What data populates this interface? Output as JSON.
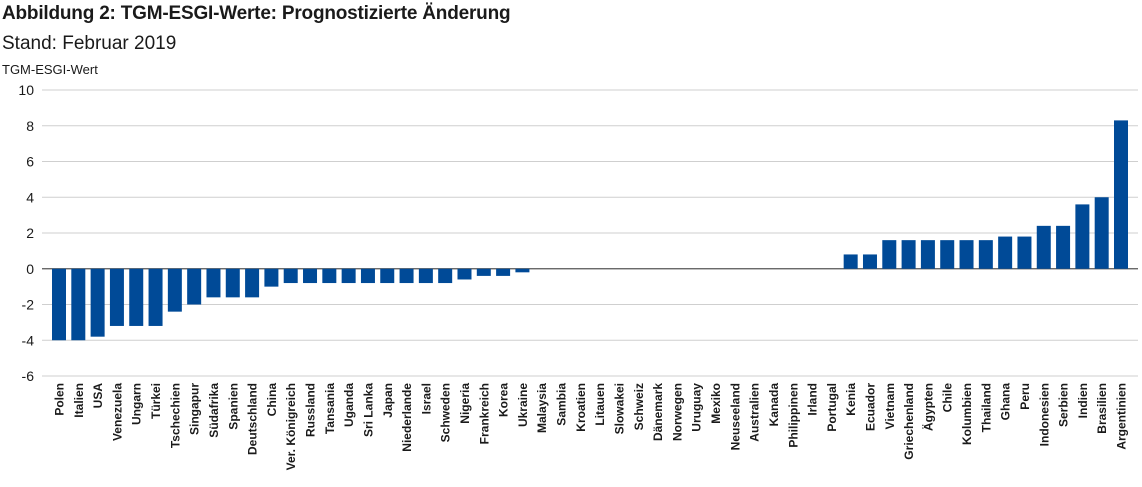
{
  "header": {
    "title": "Abbildung 2: TGM-ESGI-Werte: Prognostizierte Änderung",
    "subtitle": "Stand: Februar 2019"
  },
  "chart_data": {
    "type": "bar",
    "title": "Abbildung 2: TGM-ESGI-Werte: Prognostizierte Änderung",
    "subtitle": "Stand: Februar 2019",
    "xlabel": "",
    "ylabel": "TGM-ESGI-Wert",
    "ylim": [
      -6,
      10
    ],
    "yticks": [
      10,
      8,
      6,
      4,
      2,
      0,
      -2,
      -4,
      -6
    ],
    "grid": true,
    "bar_color": "#004a97",
    "categories": [
      "Polen",
      "Italien",
      "USA",
      "Venezuela",
      "Ungarn",
      "Türkei",
      "Tschechien",
      "Singapur",
      "Südafrika",
      "Spanien",
      "Deutschland",
      "China",
      "Ver. Königreich",
      "Russland",
      "Tansania",
      "Uganda",
      "Sri Lanka",
      "Japan",
      "Niederlande",
      "Israel",
      "Schweden",
      "Nigeria",
      "Frankreich",
      "Korea",
      "Ukraine",
      "Malaysia",
      "Sambia",
      "Kroatien",
      "Litauen",
      "Slowakei",
      "Schweiz",
      "Dänemark",
      "Norwegen",
      "Uruguay",
      "Mexiko",
      "Neuseeland",
      "Australien",
      "Kanada",
      "Philippinen",
      "Irland",
      "Portugal",
      "Kenia",
      "Ecuador",
      "Vietnam",
      "Griechenland",
      "Ägypten",
      "Chile",
      "Kolumbien",
      "Thailand",
      "Ghana",
      "Peru",
      "Indonesien",
      "Serbien",
      "Indien",
      "Brasilien",
      "Argentinien"
    ],
    "values": [
      -4.0,
      -4.0,
      -3.8,
      -3.2,
      -3.2,
      -3.2,
      -2.4,
      -2.0,
      -1.6,
      -1.6,
      -1.6,
      -1.0,
      -0.8,
      -0.8,
      -0.8,
      -0.8,
      -0.8,
      -0.8,
      -0.8,
      -0.8,
      -0.8,
      -0.6,
      -0.4,
      -0.4,
      -0.2,
      0,
      0,
      0,
      0,
      0,
      0,
      0,
      0,
      0,
      0,
      0,
      0,
      0,
      0,
      0,
      0,
      0.8,
      0.8,
      1.6,
      1.6,
      1.6,
      1.6,
      1.6,
      1.6,
      1.8,
      1.8,
      2.4,
      2.4,
      3.6,
      4.0,
      8.3
    ]
  }
}
